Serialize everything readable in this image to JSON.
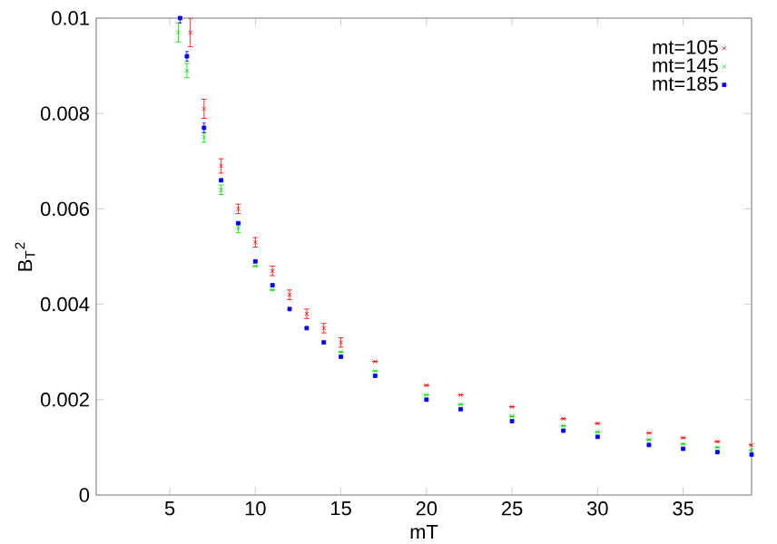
{
  "chart_data": {
    "type": "scatter",
    "xlabel": "mT",
    "ylabel": "B$_{T}$$^{2}$",
    "xlim": [
      0.7,
      39
    ],
    "ylim": [
      0,
      0.01
    ],
    "xticks": [
      5,
      10,
      15,
      20,
      25,
      30,
      35
    ],
    "yticks": [
      0,
      0.002,
      0.004,
      0.006,
      0.008,
      0.01
    ],
    "grid": false,
    "legend": "top right",
    "series": [
      {
        "name": "mt=105",
        "color": "#ff0000",
        "marker": "cross",
        "x": [
          6.2,
          7,
          8,
          9,
          10,
          11,
          12,
          13,
          14,
          15,
          17,
          20,
          22,
          25,
          28,
          30,
          33,
          35,
          37,
          39
        ],
        "values": [
          0.0097,
          0.0081,
          0.0069,
          0.006,
          0.0053,
          0.0047,
          0.0042,
          0.0038,
          0.0035,
          0.0032,
          0.0028,
          0.0023,
          0.0021,
          0.00185,
          0.0016,
          0.0015,
          0.0013,
          0.0012,
          0.00112,
          0.00105
        ],
        "errors": [
          0.0003,
          0.0002,
          0.00015,
          0.0001,
          0.0001,
          0.0001,
          0.0001,
          0.0001,
          0.0001,
          0.0001,
          null,
          null,
          null,
          null,
          null,
          null,
          null,
          null,
          null,
          null
        ]
      },
      {
        "name": "mt=145",
        "color": "#00dd00",
        "marker": "cross",
        "x": [
          5.5,
          6,
          7,
          8,
          9,
          10,
          11,
          12,
          13,
          14,
          15,
          17,
          20,
          22,
          25,
          28,
          30,
          33,
          35,
          37,
          39
        ],
        "values": [
          0.0097,
          0.0089,
          0.0075,
          0.0064,
          0.0056,
          0.0048,
          0.0043,
          null,
          null,
          null,
          0.003,
          0.0026,
          0.0021,
          0.0019,
          0.00165,
          0.00145,
          0.00132,
          0.00116,
          0.00107,
          0.001,
          0.00094
        ],
        "errors": [
          0.0002,
          0.00015,
          0.0001,
          0.0001,
          0.0001,
          null,
          null,
          null,
          null,
          null,
          null,
          null,
          null,
          null,
          null,
          null,
          null,
          null,
          null,
          null,
          null
        ]
      },
      {
        "name": "mt=185",
        "color": "#0000ff",
        "marker": "square",
        "x": [
          5.6,
          6,
          7,
          8,
          9,
          10,
          11,
          12,
          13,
          14,
          15,
          17,
          20,
          22,
          25,
          28,
          30,
          33,
          35,
          37,
          39
        ],
        "values": [
          0.01,
          0.0092,
          0.0077,
          0.0066,
          0.0057,
          0.0049,
          0.0044,
          0.0039,
          0.0035,
          0.0032,
          0.0029,
          0.0025,
          0.002,
          0.0018,
          0.00155,
          0.00135,
          0.00122,
          0.00105,
          0.00097,
          0.0009,
          0.00085
        ],
        "errors": [
          0.0001,
          0.0001,
          0.0001,
          null,
          null,
          null,
          null,
          null,
          null,
          null,
          null,
          null,
          null,
          null,
          null,
          null,
          null,
          null,
          null,
          null,
          null
        ]
      }
    ]
  }
}
